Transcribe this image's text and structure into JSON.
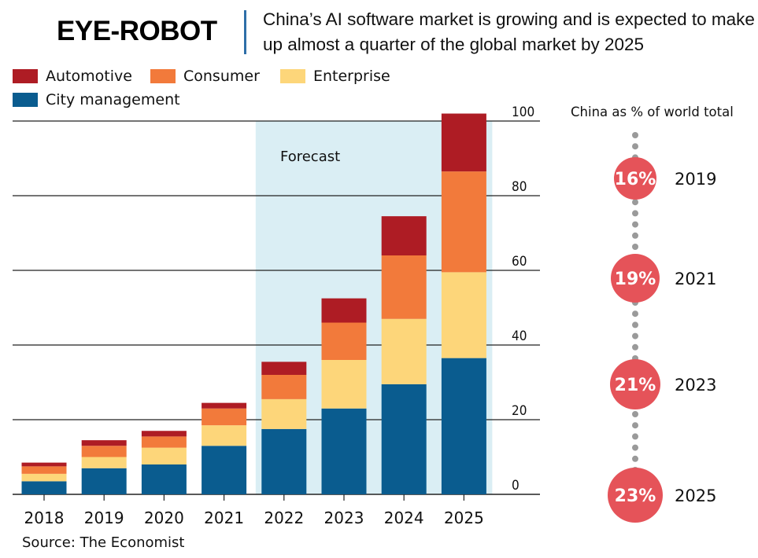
{
  "brand": "EYE-ROBOT",
  "headline": "China’s AI software market is growing and is expected to make up almost a quarter of the global market by 2025",
  "source": "Source: The Economist",
  "colors": {
    "automotive": "#ae1c24",
    "consumer": "#f27a3b",
    "enterprise": "#fdd67a",
    "city": "#0a5c8f",
    "forecast_band": "#daeef4",
    "bubble": "#e55359",
    "dots": "#9a9a9a"
  },
  "legend": [
    {
      "label": "Automotive",
      "color_key": "automotive"
    },
    {
      "label": "Consumer",
      "color_key": "consumer"
    },
    {
      "label": "Enterprise",
      "color_key": "enterprise"
    },
    {
      "label": "City management",
      "color_key": "city"
    }
  ],
  "chart_data": {
    "type": "bar",
    "stacked": true,
    "categories": [
      "2018",
      "2019",
      "2020",
      "2021",
      "2022",
      "2023",
      "2024",
      "2025"
    ],
    "series": [
      {
        "name": "City management",
        "color_key": "city",
        "values": [
          3.5,
          7,
          8,
          13,
          17.5,
          23,
          29.5,
          36.5
        ]
      },
      {
        "name": "Enterprise",
        "color_key": "enterprise",
        "values": [
          2,
          3,
          4.5,
          5.5,
          8,
          13,
          17.5,
          23
        ]
      },
      {
        "name": "Consumer",
        "color_key": "consumer",
        "values": [
          2,
          3,
          3,
          4.5,
          6.5,
          10,
          17,
          27
        ]
      },
      {
        "name": "Automotive",
        "color_key": "automotive",
        "values": [
          1,
          1.5,
          1.5,
          1.5,
          3.5,
          6.5,
          10.5,
          15.5
        ]
      }
    ],
    "ylim": [
      0,
      100
    ],
    "yticks": [
      0,
      20,
      40,
      60,
      80,
      100
    ],
    "forecast_label": "Forecast",
    "forecast_from": "2022",
    "y_axis_side": "right",
    "grid": true
  },
  "side_panel": {
    "title": "China as % of world total",
    "items": [
      {
        "label": "16%",
        "year": "2019"
      },
      {
        "label": "19%",
        "year": "2021"
      },
      {
        "label": "21%",
        "year": "2023"
      },
      {
        "label": "23%",
        "year": "2025"
      }
    ]
  }
}
